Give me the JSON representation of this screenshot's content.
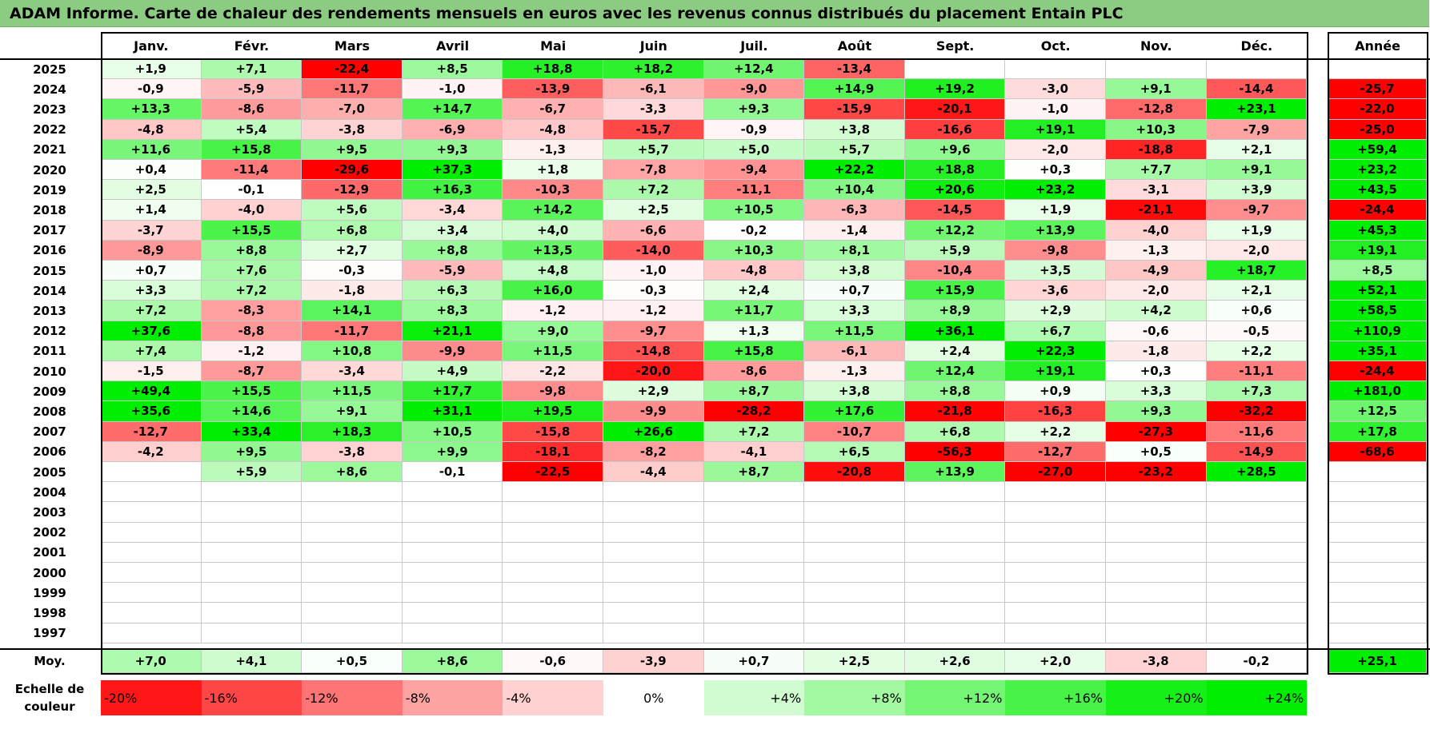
{
  "title": "ADAM Informe. Carte de chaleur des rendements mensuels en euros avec les revenus connus distribués du placement Entain PLC",
  "chart_data": {
    "type": "heatmap",
    "months": [
      "Janv.",
      "Févr.",
      "Mars",
      "Avril",
      "Mai",
      "Juin",
      "Juil.",
      "Août",
      "Sept.",
      "Oct.",
      "Nov.",
      "Déc."
    ],
    "year_column_label": "Année",
    "rows": [
      {
        "year": "2025",
        "values": [
          1.9,
          7.1,
          -22.4,
          8.5,
          18.8,
          18.2,
          12.4,
          -13.4,
          null,
          null,
          null,
          null
        ],
        "annual": null
      },
      {
        "year": "2024",
        "values": [
          -0.9,
          -5.9,
          -11.7,
          -1.0,
          -13.9,
          -6.1,
          -9.0,
          14.9,
          19.2,
          -3.0,
          9.1,
          -14.4
        ],
        "annual": -25.7
      },
      {
        "year": "2023",
        "values": [
          13.3,
          -8.6,
          -7.0,
          14.7,
          -6.7,
          -3.3,
          9.3,
          -15.9,
          -20.1,
          -1.0,
          -12.8,
          23.1
        ],
        "annual": -22.0
      },
      {
        "year": "2022",
        "values": [
          -4.8,
          5.4,
          -3.8,
          -6.9,
          -4.8,
          -15.7,
          -0.9,
          3.8,
          -16.6,
          19.1,
          10.3,
          -7.9
        ],
        "annual": -25.0
      },
      {
        "year": "2021",
        "values": [
          11.6,
          15.8,
          9.5,
          9.3,
          -1.3,
          5.7,
          5.0,
          5.7,
          9.6,
          -2.0,
          -18.8,
          2.1
        ],
        "annual": 59.4
      },
      {
        "year": "2020",
        "values": [
          0.4,
          -11.4,
          -29.6,
          37.3,
          1.8,
          -7.8,
          -9.4,
          22.2,
          18.8,
          0.3,
          7.7,
          9.1
        ],
        "annual": 23.2
      },
      {
        "year": "2019",
        "values": [
          2.5,
          -0.1,
          -12.9,
          16.3,
          -10.3,
          7.2,
          -11.1,
          10.4,
          20.6,
          23.2,
          -3.1,
          3.9
        ],
        "annual": 43.5
      },
      {
        "year": "2018",
        "values": [
          1.4,
          -4.0,
          5.6,
          -3.4,
          14.2,
          2.5,
          10.5,
          -6.3,
          -14.5,
          1.9,
          -21.1,
          -9.7
        ],
        "annual": -24.4
      },
      {
        "year": "2017",
        "values": [
          -3.7,
          15.5,
          6.8,
          3.4,
          4.0,
          -6.6,
          -0.2,
          -1.4,
          12.2,
          13.9,
          -4.0,
          1.9
        ],
        "annual": 45.3
      },
      {
        "year": "2016",
        "values": [
          -8.9,
          8.8,
          2.7,
          8.8,
          13.5,
          -14.0,
          10.3,
          8.1,
          5.9,
          -9.8,
          -1.3,
          -2.0
        ],
        "annual": 19.1
      },
      {
        "year": "2015",
        "values": [
          0.7,
          7.6,
          -0.3,
          -5.9,
          4.8,
          -1.0,
          -4.8,
          3.8,
          -10.4,
          3.5,
          -4.9,
          18.7
        ],
        "annual": 8.5
      },
      {
        "year": "2014",
        "values": [
          3.3,
          7.2,
          -1.8,
          6.3,
          16.0,
          -0.3,
          2.4,
          0.7,
          15.9,
          -3.6,
          -2.0,
          2.1
        ],
        "annual": 52.1
      },
      {
        "year": "2013",
        "values": [
          7.2,
          -8.3,
          14.1,
          8.3,
          -1.2,
          -1.2,
          11.7,
          3.3,
          8.9,
          2.9,
          4.2,
          0.6
        ],
        "annual": 58.5
      },
      {
        "year": "2012",
        "values": [
          37.6,
          -8.8,
          -11.7,
          21.1,
          9.0,
          -9.7,
          1.3,
          11.5,
          36.1,
          6.7,
          -0.6,
          -0.5
        ],
        "annual": 110.9
      },
      {
        "year": "2011",
        "values": [
          7.4,
          -1.2,
          10.8,
          -9.9,
          11.5,
          -14.8,
          15.8,
          -6.1,
          2.4,
          22.3,
          -1.8,
          2.2
        ],
        "annual": 35.1
      },
      {
        "year": "2010",
        "values": [
          -1.5,
          -8.7,
          -3.4,
          4.9,
          -2.2,
          -20.0,
          -8.6,
          -1.3,
          12.4,
          19.1,
          0.3,
          -11.1
        ],
        "annual": -24.4
      },
      {
        "year": "2009",
        "values": [
          49.4,
          15.5,
          11.5,
          17.7,
          -9.8,
          2.9,
          8.7,
          3.8,
          8.8,
          0.9,
          3.3,
          7.3
        ],
        "annual": 181.0
      },
      {
        "year": "2008",
        "values": [
          35.6,
          14.6,
          9.1,
          31.1,
          19.5,
          -9.9,
          -28.2,
          17.6,
          -21.8,
          -16.3,
          9.3,
          -32.2
        ],
        "annual": 12.5
      },
      {
        "year": "2007",
        "values": [
          -12.7,
          33.4,
          18.3,
          10.5,
          -15.8,
          26.6,
          7.2,
          -10.7,
          6.8,
          2.2,
          -27.3,
          -11.6
        ],
        "annual": 17.8
      },
      {
        "year": "2006",
        "values": [
          -4.2,
          9.5,
          -3.8,
          9.9,
          -18.1,
          -8.2,
          -4.1,
          6.5,
          -56.3,
          -12.7,
          0.5,
          -14.9
        ],
        "annual": -68.6
      },
      {
        "year": "2005",
        "values": [
          null,
          5.9,
          8.6,
          -0.1,
          -22.5,
          -4.4,
          8.7,
          -20.8,
          13.9,
          -27.0,
          -23.2,
          28.5
        ],
        "annual": null
      },
      {
        "year": "2004",
        "values": [
          null,
          null,
          null,
          null,
          null,
          null,
          null,
          null,
          null,
          null,
          null,
          null
        ],
        "annual": null
      },
      {
        "year": "2003",
        "values": [
          null,
          null,
          null,
          null,
          null,
          null,
          null,
          null,
          null,
          null,
          null,
          null
        ],
        "annual": null
      },
      {
        "year": "2002",
        "values": [
          null,
          null,
          null,
          null,
          null,
          null,
          null,
          null,
          null,
          null,
          null,
          null
        ],
        "annual": null
      },
      {
        "year": "2001",
        "values": [
          null,
          null,
          null,
          null,
          null,
          null,
          null,
          null,
          null,
          null,
          null,
          null
        ],
        "annual": null
      },
      {
        "year": "2000",
        "values": [
          null,
          null,
          null,
          null,
          null,
          null,
          null,
          null,
          null,
          null,
          null,
          null
        ],
        "annual": null
      },
      {
        "year": "1999",
        "values": [
          null,
          null,
          null,
          null,
          null,
          null,
          null,
          null,
          null,
          null,
          null,
          null
        ],
        "annual": null
      },
      {
        "year": "1998",
        "values": [
          null,
          null,
          null,
          null,
          null,
          null,
          null,
          null,
          null,
          null,
          null,
          null
        ],
        "annual": null
      },
      {
        "year": "1997",
        "values": [
          null,
          null,
          null,
          null,
          null,
          null,
          null,
          null,
          null,
          null,
          null,
          null
        ],
        "annual": null
      }
    ],
    "average": {
      "label": "Moy.",
      "values": [
        7.0,
        4.1,
        0.5,
        8.6,
        -0.6,
        -3.9,
        0.7,
        2.5,
        2.6,
        2.0,
        -3.8,
        -0.2
      ],
      "annual": 25.1
    },
    "scale": {
      "label": "Echelle de couleur",
      "stops": [
        -20,
        -16,
        -12,
        -8,
        -4,
        0,
        4,
        8,
        12,
        16,
        20,
        24
      ],
      "labels": [
        "-20%",
        "-16%",
        "-12%",
        "-8%",
        "-4%",
        "0%",
        "+4%",
        "+8%",
        "+12%",
        "+16%",
        "+20%",
        "+24%"
      ]
    },
    "colors": {
      "negative_max": "#ff0000",
      "neutral": "#ffffff",
      "positive_max": "#00ee00"
    }
  }
}
